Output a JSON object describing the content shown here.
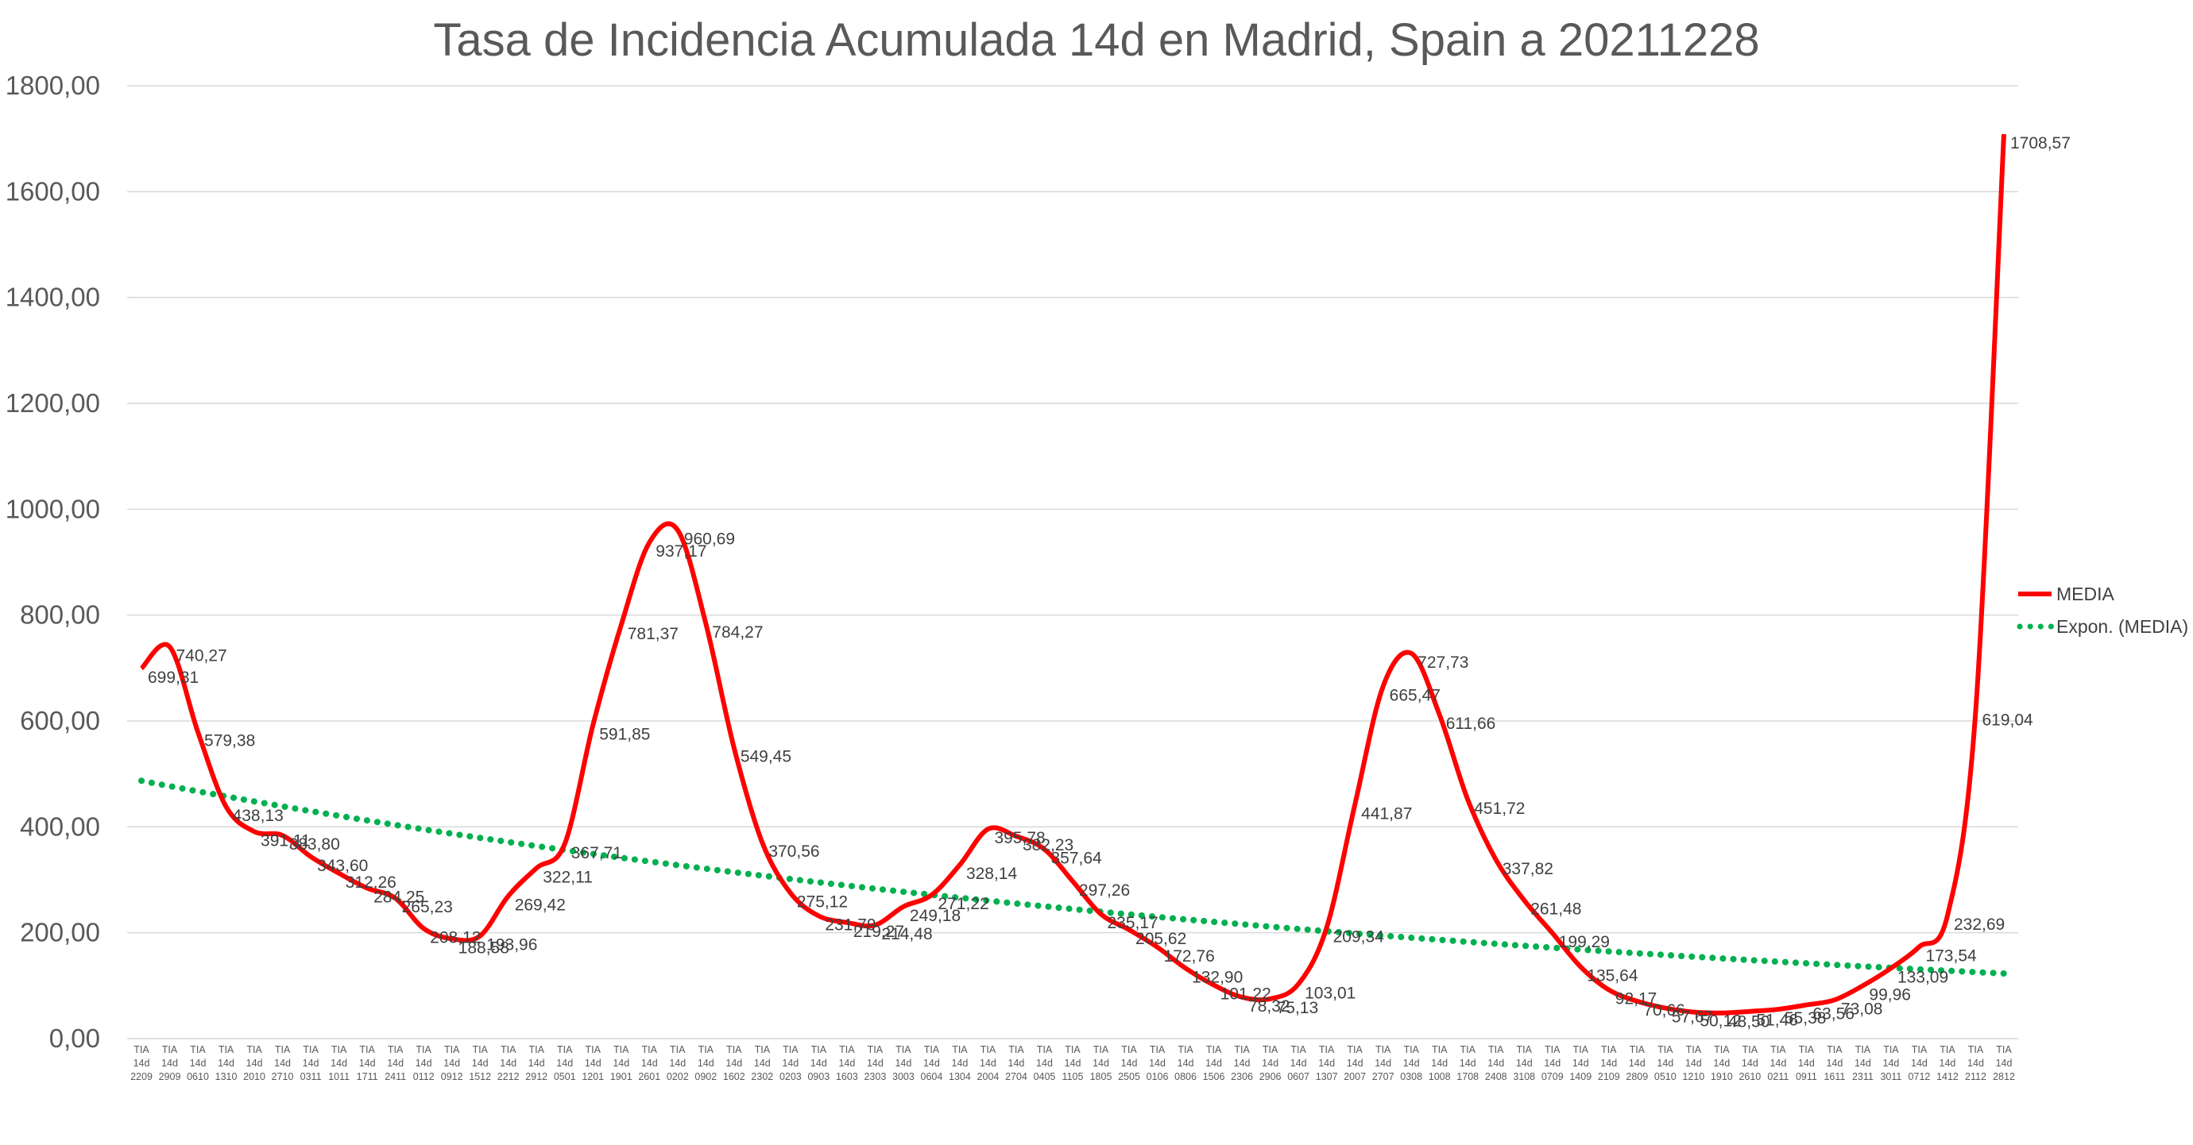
{
  "chart_data": {
    "type": "line",
    "title": "Tasa de Incidencia Acumulada 14d en Madrid, Spain a 20211228",
    "xlabel": "",
    "ylabel": "",
    "ylim": [
      0,
      1800
    ],
    "grid": true,
    "legend_position": "right",
    "y_ticks": [
      "0,00",
      "200,00",
      "400,00",
      "600,00",
      "800,00",
      "1000,00",
      "1200,00",
      "1400,00",
      "1600,00",
      "1800,00"
    ],
    "tick_prefix": [
      "TIA",
      "14d"
    ],
    "categories": [
      "2209",
      "2909",
      "0610",
      "1310",
      "2010",
      "2710",
      "0311",
      "1011",
      "1711",
      "2411",
      "0112",
      "0912",
      "1512",
      "2212",
      "2912",
      "0501",
      "1201",
      "1901",
      "2601",
      "0202",
      "0902",
      "1602",
      "2302",
      "0203",
      "0903",
      "1603",
      "2303",
      "3003",
      "0604",
      "1304",
      "2004",
      "2704",
      "0405",
      "1105",
      "1805",
      "2505",
      "0106",
      "0806",
      "1506",
      "2306",
      "2906",
      "0607",
      "1307",
      "2007",
      "2707",
      "0308",
      "1008",
      "1708",
      "2408",
      "3108",
      "0709",
      "1409",
      "2109",
      "2809",
      "0510",
      "1210",
      "1910",
      "2610",
      "0211",
      "0911",
      "1611",
      "2311",
      "3011",
      "0712",
      "1412",
      "2112",
      "2812"
    ],
    "series": [
      {
        "name": "MEDIA",
        "color": "#ff0000",
        "values": [
          699.31,
          740.27,
          579.38,
          438.13,
          391.11,
          383.8,
          343.6,
          312.26,
          284.25,
          265.23,
          208.12,
          188.58,
          193.96,
          269.42,
          322.11,
          367.71,
          591.85,
          781.37,
          937.17,
          960.69,
          784.27,
          549.45,
          370.56,
          275.12,
          231.79,
          219.27,
          214.48,
          249.18,
          271.22,
          328.14,
          395.78,
          382.23,
          357.64,
          297.26,
          235.17,
          205.62,
          172.76,
          132.9,
          101.22,
          78.32,
          75.13,
          103.01,
          209.34,
          441.87,
          665.47,
          727.73,
          611.66,
          451.72,
          337.82,
          261.48,
          199.29,
          135.64,
          92.17,
          70.66,
          57.67,
          50.12,
          48.5,
          51.46,
          55.38,
          63.56,
          73.08,
          99.96,
          133.09,
          173.54,
          232.69,
          619.04,
          1708.57
        ],
        "labels": [
          "699,31",
          "740,27",
          "579,38",
          "438,13",
          "391,11",
          "383,80",
          "343,60",
          "312,26",
          "284,25",
          "265,23",
          "208,12",
          "188,58",
          "193,96",
          "269,42",
          "322,11",
          "367,71",
          "591,85",
          "781,37",
          "937,17",
          "960,69",
          "784,27",
          "549,45",
          "370,56",
          "275,12",
          "231,79",
          "219,27",
          "214,48",
          "249,18",
          "271,22",
          "328,14",
          "395,78",
          "382,23",
          "357,64",
          "297,26",
          "235,17",
          "205,62",
          "172,76",
          "132,90",
          "101,22",
          "78,32",
          "75,13",
          "103,01",
          "209,34",
          "441,87",
          "665,47",
          "727,73",
          "611,66",
          "451,72",
          "337,82",
          "261,48",
          "199,29",
          "135,64",
          "92,17",
          "70,66",
          "57,67",
          "50,12",
          "48,50",
          "51,46",
          "55,38",
          "63,56",
          "73,08",
          "99,96",
          "133,09",
          "173,54",
          "232,69",
          "619,04",
          "1708,57"
        ]
      },
      {
        "name": "Expon. (MEDIA)",
        "color": "#00b050",
        "type": "trendline-exponential",
        "start_value": 487,
        "end_value": 123
      }
    ]
  }
}
